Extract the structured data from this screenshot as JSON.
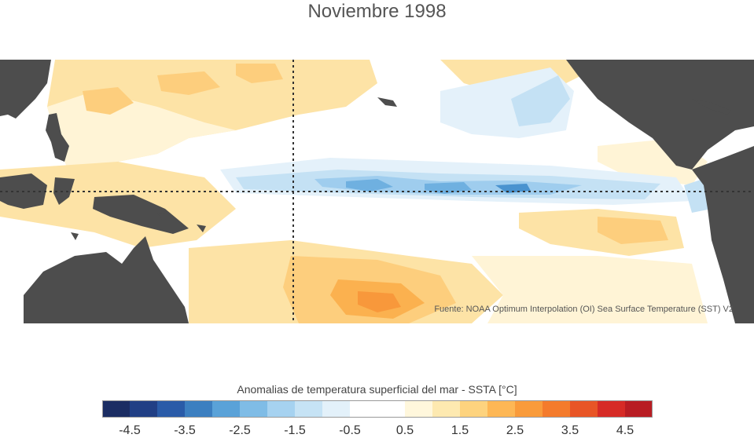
{
  "title": "Noviembre 1998",
  "source": "Fuente: NOAA Optimum Interpolation (OI) Sea Surface Temperature (SST) V2",
  "colorbar": {
    "label": "Anomalias de temperatura superficial del mar - SSTA  [°C]",
    "min": -5,
    "max": 5,
    "colors": [
      "#1b2d63",
      "#213f85",
      "#2a5ba8",
      "#3c7fc0",
      "#5aa2d8",
      "#7fbce6",
      "#a6d2f0",
      "#c6e3f5",
      "#e3f1fa",
      "#ffffff",
      "#fff7dc",
      "#fde9b0",
      "#fdd37e",
      "#fdb755",
      "#f99b3b",
      "#f47b2c",
      "#e85526",
      "#d62b26",
      "#b81d23"
    ],
    "tick_labels": [
      "-4.5",
      "-3.5",
      "-2.5",
      "-1.5",
      "-0.5",
      "0.5",
      "1.5",
      "2.5",
      "3.5",
      "4.5"
    ],
    "tick_values": [
      -4.5,
      -3.5,
      -2.5,
      -1.5,
      -0.5,
      0.5,
      1.5,
      2.5,
      3.5,
      4.5
    ]
  },
  "map_colors": {
    "land": "#4d4d4d",
    "warm_light": "#fff4d6",
    "warm_mid": "#fde3a6",
    "warm": "#fdce7d",
    "warm_strong": "#fbb14f",
    "warm_hot": "#f8983b",
    "cool_light": "#e4f1fa",
    "cool_mid": "#c4e1f4",
    "cool": "#9fcdee",
    "cool_strong": "#6fb0e0",
    "cool_deep": "#4a93cf",
    "guide": "#333333"
  }
}
